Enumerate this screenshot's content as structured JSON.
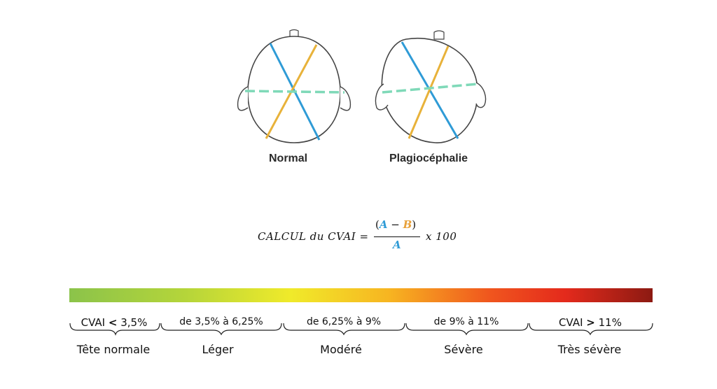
{
  "heads": {
    "normal_label": "Normal",
    "plagio_label": "Plagiocéphalie"
  },
  "formula": {
    "prefix": "CALCUL du CVAI =",
    "open": "(",
    "var_a": "A",
    "minus": " − ",
    "var_b": "B",
    "close": ")",
    "denominator": "A",
    "suffix": "x 100"
  },
  "colors": {
    "diag_a": "#2f9bd6",
    "diag_b": "#e8a13a",
    "midline": "#7fd9b8"
  },
  "scale": {
    "ranges": [
      {
        "text": "CVAI ",
        "sym": "<",
        "value": " 3,5%"
      },
      {
        "text": "de 3,5% à 6,25%"
      },
      {
        "text": "de 6,25% à 9%"
      },
      {
        "text": "de 9% à 11%"
      },
      {
        "text": "CVAI ",
        "sym": ">",
        "value": " 11%"
      }
    ],
    "categories": [
      "Tête normale",
      "Léger",
      "Modéré",
      "Sévère",
      "Très sévère"
    ]
  }
}
